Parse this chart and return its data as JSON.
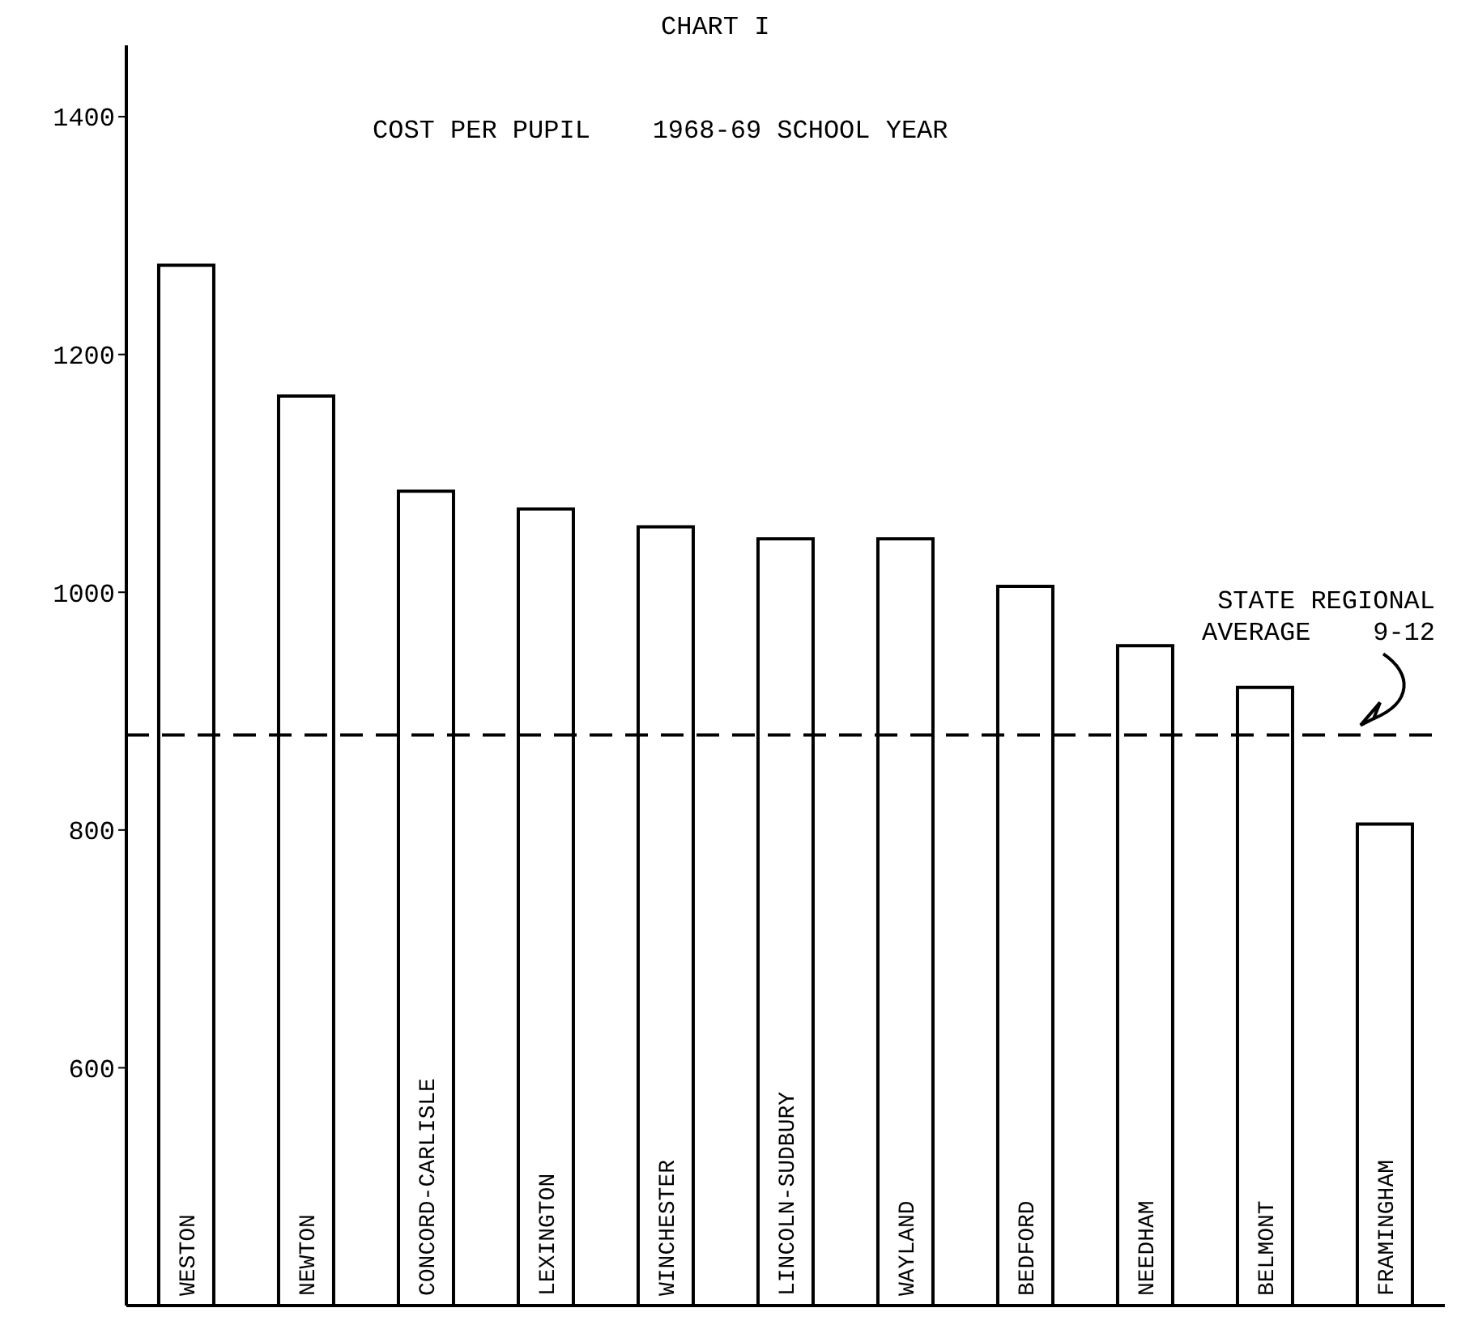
{
  "chart_data": {
    "type": "bar",
    "title": "CHART I",
    "subtitle": "COST PER PUPIL    1968-69 SCHOOL YEAR",
    "categories": [
      "WESTON",
      "NEWTON",
      "CONCORD-CARLISLE",
      "LEXINGTON",
      "WINCHESTER",
      "LINCOLN-SUDBURY",
      "WAYLAND",
      "BEDFORD",
      "NEEDHAM",
      "BELMONT",
      "FRAMINGHAM"
    ],
    "values": [
      1275,
      1165,
      1085,
      1070,
      1055,
      1045,
      1045,
      1005,
      955,
      920,
      805
    ],
    "color": "#ffffff",
    "ylim": [
      400,
      1460
    ],
    "yticks": [
      600,
      800,
      1000,
      1200,
      1400
    ],
    "ref_lines": [
      {
        "axis": "y",
        "value": 880,
        "label": "STATE REGIONAL AVERAGE    9-12",
        "color": "#000000",
        "line_style": "dashed"
      }
    ],
    "line_style": "solid"
  }
}
